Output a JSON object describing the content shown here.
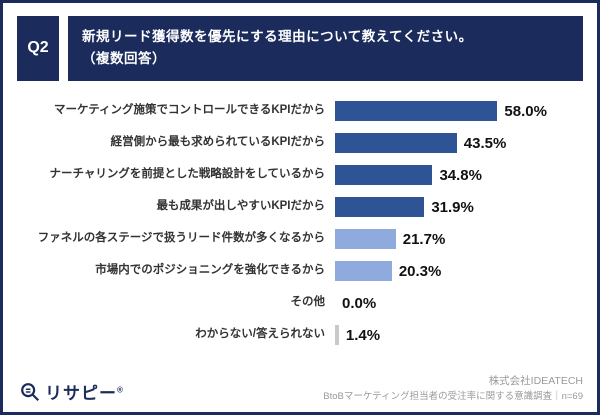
{
  "header": {
    "q_label": "Q2",
    "title_line1": "新規リード獲得数を優先にする理由について教えてください。",
    "title_line2": "（複数回答）"
  },
  "chart_data": {
    "type": "bar",
    "orientation": "horizontal",
    "title": "新規リード獲得数を優先にする理由について教えてください。（複数回答）",
    "xlabel": "",
    "ylabel": "",
    "xlim": [
      0,
      65
    ],
    "grid": false,
    "legend": "none",
    "categories": [
      "マーケティング施策でコントロールできるKPIだから",
      "経営側から最も求められているKPIだから",
      "ナーチャリングを前提とした戦略設計をしているから",
      "最も成果が出しやすいKPIだから",
      "ファネルの各ステージで扱うリード件数が多くなるから",
      "市場内でのポジショニングを強化できるから",
      "その他",
      "わからない/答えられない"
    ],
    "values": [
      58.0,
      43.5,
      34.8,
      31.9,
      21.7,
      20.3,
      0.0,
      1.4
    ],
    "value_labels": [
      "58.0%",
      "43.5%",
      "34.8%",
      "31.9%",
      "21.7%",
      "20.3%",
      "0.0%",
      "1.4%"
    ],
    "bar_colors": [
      "#2e5496",
      "#2e5496",
      "#2e5496",
      "#2e5496",
      "#8faadc",
      "#8faadc",
      "#8faadc",
      "#c9c9c9"
    ]
  },
  "colors": {
    "navy": "#1b2b5c",
    "dark_bar": "#2e5496",
    "light_bar": "#8faadc",
    "gray_bar": "#c9c9c9"
  },
  "footer": {
    "logo_icon": "magnifier-icon",
    "logo_text": "リサピー",
    "logo_reg": "®",
    "company": "株式会社IDEATECH",
    "survey": "BtoBマーケティング担当者の受注率に関する意識調査｜n=69"
  }
}
